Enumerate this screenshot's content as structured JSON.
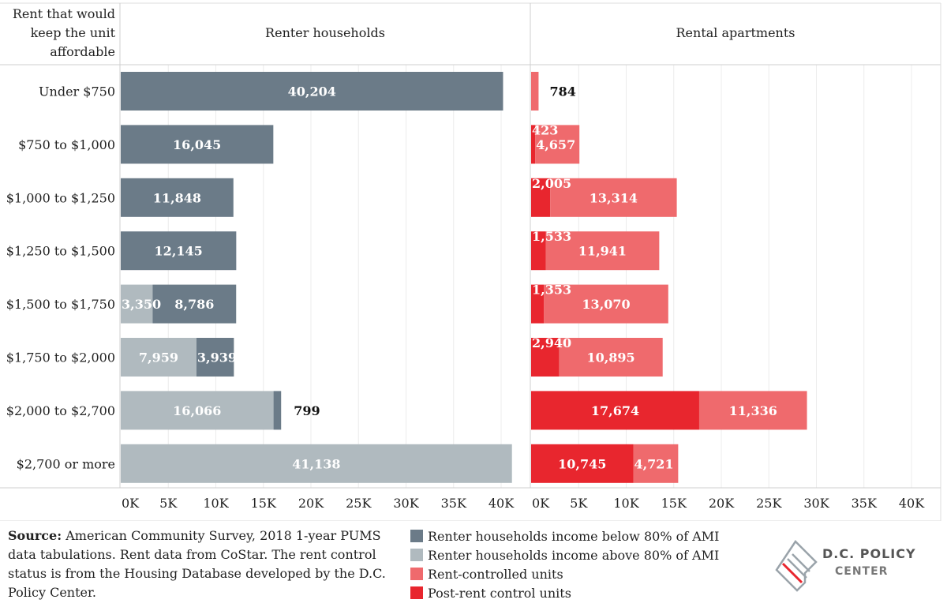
{
  "header": {
    "row_header": [
      "Rent that would",
      "keep the unit",
      "affordable"
    ],
    "left_panel_title": "Renter households",
    "right_panel_title": "Rental apartments"
  },
  "chart_data": {
    "type": "bar",
    "orientation": "horizontal-stacked",
    "categories": [
      "Under $750",
      "$750 to $1,000",
      "$1,000 to $1,250",
      "$1,250 to $1,500",
      "$1,500 to $1,750",
      "$1,750 to $2,000",
      "$2,000 to $2,700",
      "$2,700 or more"
    ],
    "panels": [
      {
        "title": "Renter households",
        "xlim": [
          0,
          42000
        ],
        "ticks": [
          "0K",
          "5K",
          "10K",
          "15K",
          "20K",
          "25K",
          "30K",
          "35K",
          "40K"
        ],
        "series": [
          {
            "name": "Renter households income above 80% of AMI",
            "color": "#b0babf",
            "values": [
              0,
              0,
              0,
              0,
              3350,
              7959,
              16066,
              41138
            ]
          },
          {
            "name": "Renter households income below 80% of AMI",
            "color": "#6b7b88",
            "values": [
              40204,
              16045,
              11848,
              12145,
              8786,
              3939,
              799,
              0
            ]
          }
        ]
      },
      {
        "title": "Rental apartments",
        "xlim": [
          0,
          42000
        ],
        "ticks": [
          "0K",
          "5K",
          "10K",
          "15K",
          "20K",
          "25K",
          "30K",
          "35K",
          "40K"
        ],
        "series": [
          {
            "name": "Post-rent control units",
            "color": "#e8262e",
            "values": [
              0,
              423,
              2005,
              1533,
              1353,
              2940,
              17674,
              10745
            ]
          },
          {
            "name": "Rent-controlled units",
            "color": "#ef6a6d",
            "values": [
              784,
              4657,
              13314,
              11941,
              13070,
              10895,
              11336,
              4721
            ]
          }
        ]
      }
    ],
    "value_labels": {
      "left": [
        [
          {
            "text": "40,204"
          }
        ],
        [
          {
            "text": "16,045"
          }
        ],
        [
          {
            "text": "11,848"
          }
        ],
        [
          {
            "text": "12,145"
          }
        ],
        [
          {
            "text": "3,350"
          },
          {
            "text": "8,786"
          }
        ],
        [
          {
            "text": "7,959"
          },
          {
            "text": "3,939"
          }
        ],
        [
          {
            "text": "16,066"
          },
          {
            "text": "799"
          }
        ],
        [
          {
            "text": "41,138"
          }
        ]
      ],
      "right": [
        [
          {
            "text": "784"
          }
        ],
        [
          {
            "text": "423"
          },
          {
            "text": "4,657"
          }
        ],
        [
          {
            "text": "2,005"
          },
          {
            "text": "13,314"
          }
        ],
        [
          {
            "text": "1,533"
          },
          {
            "text": "11,941"
          }
        ],
        [
          {
            "text": "1,353"
          },
          {
            "text": "13,070"
          }
        ],
        [
          {
            "text": "2,940"
          },
          {
            "text": "10,895"
          }
        ],
        [
          {
            "text": "17,674"
          },
          {
            "text": "11,336"
          }
        ],
        [
          {
            "text": "10,745"
          },
          {
            "text": "4,721"
          }
        ]
      ]
    },
    "grid": true
  },
  "source": {
    "label": "Source:",
    "text": " American Community Survey, 2018 1-year PUMS data tabulations. Rent data from CoStar. The rent control status is from the Housing Database developed by the D.C. Policy Center."
  },
  "legend": [
    {
      "label": "Renter households income below 80% of AMI",
      "color": "#6b7b88"
    },
    {
      "label": "Renter households income above 80% of AMI",
      "color": "#b0babf"
    },
    {
      "label": "Rent-controlled units",
      "color": "#ef6a6d"
    },
    {
      "label": "Post-rent control units",
      "color": "#e8262e"
    }
  ],
  "logo": {
    "line1": "D.C. POLICY",
    "line2": "CENTER"
  }
}
